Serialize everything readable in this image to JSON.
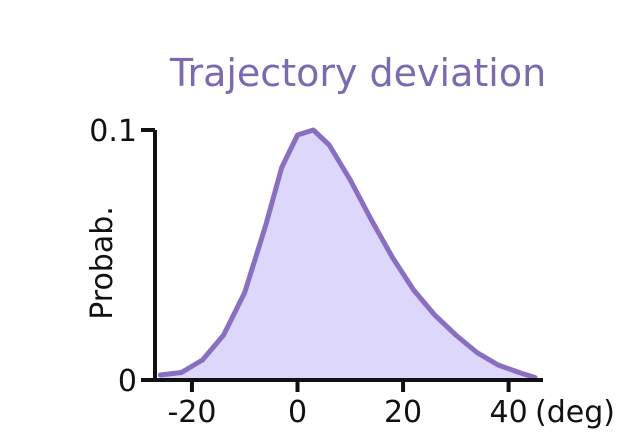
{
  "chart_data": {
    "type": "area",
    "title": "Trajectory deviation",
    "xlabel": "(deg)",
    "ylabel": "Probab.",
    "xlim": [
      -27,
      45
    ],
    "ylim": [
      0,
      0.1
    ],
    "x_ticks": [
      "-20",
      "0",
      "20",
      "40"
    ],
    "x_tick_values": [
      -20,
      0,
      20,
      40
    ],
    "y_ticks": [
      "0",
      "0.1"
    ],
    "y_tick_values": [
      0,
      0.1
    ],
    "grid": false,
    "legend": "none",
    "series": [
      {
        "x": [
          -26,
          -22,
          -18,
          -14,
          -10,
          -6,
          -3,
          0,
          3,
          6,
          10,
          14,
          18,
          22,
          26,
          30,
          34,
          38,
          42,
          45
        ],
        "y": [
          0.002,
          0.003,
          0.008,
          0.018,
          0.035,
          0.062,
          0.085,
          0.098,
          0.1,
          0.094,
          0.08,
          0.064,
          0.049,
          0.036,
          0.026,
          0.018,
          0.011,
          0.006,
          0.003,
          0.001
        ]
      }
    ],
    "colors": {
      "line": "#8a6fc0",
      "fill": "#dcd7fb",
      "title": "#7d69b0",
      "axis": "#111111"
    }
  }
}
